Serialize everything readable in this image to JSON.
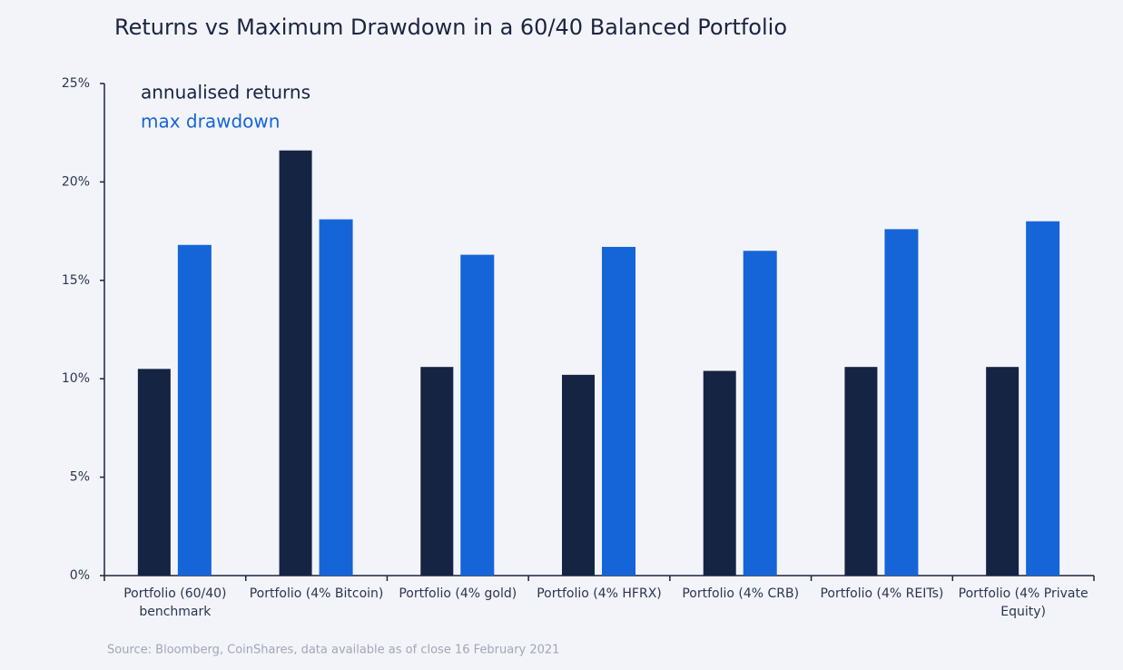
{
  "chart_data": {
    "type": "bar",
    "title": "Returns vs Maximum Drawdown in a 60/40 Balanced Portfolio",
    "categories": [
      "Portfolio (60/40) benchmark",
      "Portfolio (4% Bitcoin)",
      "Portfolio (4% gold)",
      "Portfolio (4% HFRX)",
      "Portfolio (4% CRB)",
      "Portfolio (4% REITs)",
      "Portfolio (4% Private Equity)"
    ],
    "series": [
      {
        "name": "annualised returns",
        "color": "#152443",
        "values": [
          10.5,
          21.6,
          10.6,
          10.2,
          10.4,
          10.6,
          10.6
        ]
      },
      {
        "name": "max drawdown",
        "color": "#1565d8",
        "values": [
          16.8,
          18.1,
          16.3,
          16.7,
          16.5,
          17.6,
          18.0
        ]
      }
    ],
    "ylim": [
      0,
      25
    ],
    "yticks": [
      {
        "value": 0,
        "label": "0%"
      },
      {
        "value": 5,
        "label": "5%"
      },
      {
        "value": 10,
        "label": "10%"
      },
      {
        "value": 15,
        "label": "15%"
      },
      {
        "value": 20,
        "label": "20%"
      },
      {
        "value": 25,
        "label": "25%"
      }
    ],
    "grid": false,
    "legend": "top-left",
    "source": "Source: Bloomberg, CoinShares, data available as of close 16 February 2021"
  }
}
